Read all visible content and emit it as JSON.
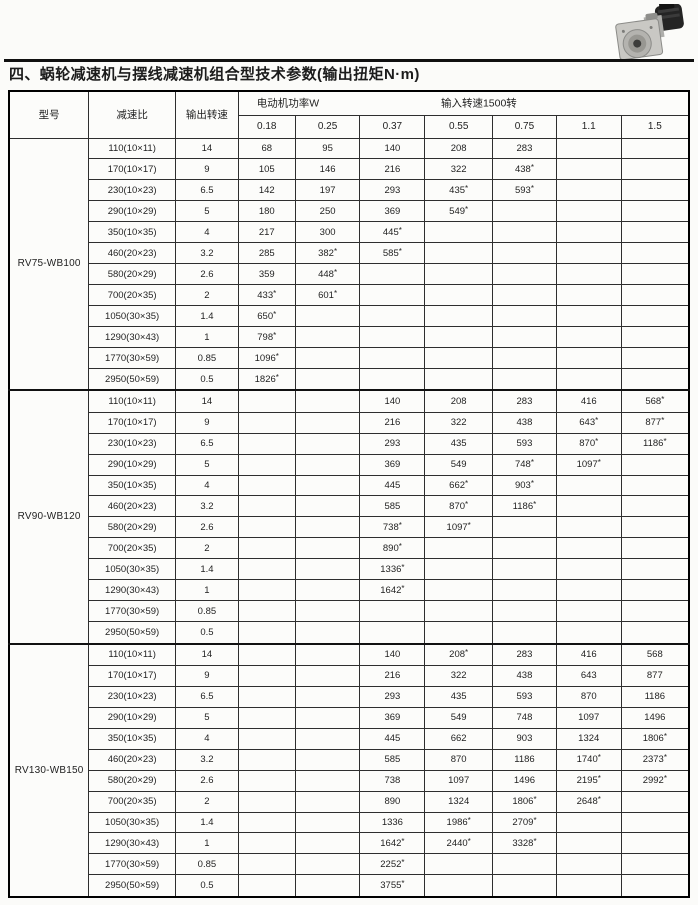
{
  "colors": {
    "text": "#1c1c1c",
    "table_border": "#000000",
    "page_bg": "#fbfbf9"
  },
  "page": {
    "title": "四、蜗轮减速机与摆线减速机组合型技术参数(输出扭矩N·m)",
    "photo_icon": "worm-gearbox-with-motor-photo"
  },
  "table": {
    "headers": {
      "model": "型号",
      "ratio": "减速比",
      "output_speed": "输出转速",
      "motor_power": "电动机功率W",
      "input_speed": "输入转速1500转",
      "power_columns": [
        "0.18",
        "0.25",
        "0.37",
        "0.55",
        "0.75",
        "1.1",
        "1.5"
      ]
    },
    "groups": [
      {
        "model": "RV75-WB100",
        "rows": [
          {
            "ratio": "110(10×11)",
            "speed": "14",
            "values": [
              "68",
              "95",
              "140",
              "208",
              "283",
              "",
              ""
            ]
          },
          {
            "ratio": "170(10×17)",
            "speed": "9",
            "values": [
              "105",
              "146",
              "216",
              "322",
              "438*",
              "",
              ""
            ]
          },
          {
            "ratio": "230(10×23)",
            "speed": "6.5",
            "values": [
              "142",
              "197",
              "293",
              "435*",
              "593*",
              "",
              ""
            ]
          },
          {
            "ratio": "290(10×29)",
            "speed": "5",
            "values": [
              "180",
              "250",
              "369",
              "549*",
              "",
              "",
              ""
            ]
          },
          {
            "ratio": "350(10×35)",
            "speed": "4",
            "values": [
              "217",
              "300",
              "445*",
              "",
              "",
              "",
              ""
            ]
          },
          {
            "ratio": "460(20×23)",
            "speed": "3.2",
            "values": [
              "285",
              "382*",
              "585*",
              "",
              "",
              "",
              ""
            ]
          },
          {
            "ratio": "580(20×29)",
            "speed": "2.6",
            "values": [
              "359",
              "448*",
              "",
              "",
              "",
              "",
              ""
            ]
          },
          {
            "ratio": "700(20×35)",
            "speed": "2",
            "values": [
              "433*",
              "601*",
              "",
              "",
              "",
              "",
              ""
            ]
          },
          {
            "ratio": "1050(30×35)",
            "speed": "1.4",
            "values": [
              "650*",
              "",
              "",
              "",
              "",
              "",
              ""
            ]
          },
          {
            "ratio": "1290(30×43)",
            "speed": "1",
            "values": [
              "798*",
              "",
              "",
              "",
              "",
              "",
              ""
            ]
          },
          {
            "ratio": "1770(30×59)",
            "speed": "0.85",
            "values": [
              "1096*",
              "",
              "",
              "",
              "",
              "",
              ""
            ]
          },
          {
            "ratio": "2950(50×59)",
            "speed": "0.5",
            "values": [
              "1826*",
              "",
              "",
              "",
              "",
              "",
              ""
            ]
          }
        ]
      },
      {
        "model": "RV90-WB120",
        "rows": [
          {
            "ratio": "110(10×11)",
            "speed": "14",
            "values": [
              "",
              "",
              "140",
              "208",
              "283",
              "416",
              "568*"
            ]
          },
          {
            "ratio": "170(10×17)",
            "speed": "9",
            "values": [
              "",
              "",
              "216",
              "322",
              "438",
              "643*",
              "877*"
            ]
          },
          {
            "ratio": "230(10×23)",
            "speed": "6.5",
            "values": [
              "",
              "",
              "293",
              "435",
              "593",
              "870*",
              "1186*"
            ]
          },
          {
            "ratio": "290(10×29)",
            "speed": "5",
            "values": [
              "",
              "",
              "369",
              "549",
              "748*",
              "1097*",
              ""
            ]
          },
          {
            "ratio": "350(10×35)",
            "speed": "4",
            "values": [
              "",
              "",
              "445",
              "662*",
              "903*",
              "",
              ""
            ]
          },
          {
            "ratio": "460(20×23)",
            "speed": "3.2",
            "values": [
              "",
              "",
              "585",
              "870*",
              "1186*",
              "",
              ""
            ]
          },
          {
            "ratio": "580(20×29)",
            "speed": "2.6",
            "values": [
              "",
              "",
              "738*",
              "1097*",
              "",
              "",
              ""
            ]
          },
          {
            "ratio": "700(20×35)",
            "speed": "2",
            "values": [
              "",
              "",
              "890*",
              "",
              "",
              "",
              ""
            ]
          },
          {
            "ratio": "1050(30×35)",
            "speed": "1.4",
            "values": [
              "",
              "",
              "1336*",
              "",
              "",
              "",
              ""
            ]
          },
          {
            "ratio": "1290(30×43)",
            "speed": "1",
            "values": [
              "",
              "",
              "1642*",
              "",
              "",
              "",
              ""
            ]
          },
          {
            "ratio": "1770(30×59)",
            "speed": "0.85",
            "values": [
              "",
              "",
              "",
              "",
              "",
              "",
              ""
            ]
          },
          {
            "ratio": "2950(50×59)",
            "speed": "0.5",
            "values": [
              "",
              "",
              "",
              "",
              "",
              "",
              ""
            ]
          }
        ]
      },
      {
        "model": "RV130-WB150",
        "rows": [
          {
            "ratio": "110(10×11)",
            "speed": "14",
            "values": [
              "",
              "",
              "140",
              "208*",
              "283",
              "416",
              "568"
            ]
          },
          {
            "ratio": "170(10×17)",
            "speed": "9",
            "values": [
              "",
              "",
              "216",
              "322",
              "438",
              "643",
              "877"
            ]
          },
          {
            "ratio": "230(10×23)",
            "speed": "6.5",
            "values": [
              "",
              "",
              "293",
              "435",
              "593",
              "870",
              "1186"
            ]
          },
          {
            "ratio": "290(10×29)",
            "speed": "5",
            "values": [
              "",
              "",
              "369",
              "549",
              "748",
              "1097",
              "1496"
            ]
          },
          {
            "ratio": "350(10×35)",
            "speed": "4",
            "values": [
              "",
              "",
              "445",
              "662",
              "903",
              "1324",
              "1806*"
            ]
          },
          {
            "ratio": "460(20×23)",
            "speed": "3.2",
            "values": [
              "",
              "",
              "585",
              "870",
              "1186",
              "1740*",
              "2373*"
            ]
          },
          {
            "ratio": "580(20×29)",
            "speed": "2.6",
            "values": [
              "",
              "",
              "738",
              "1097",
              "1496",
              "2195*",
              "2992*"
            ]
          },
          {
            "ratio": "700(20×35)",
            "speed": "2",
            "values": [
              "",
              "",
              "890",
              "1324",
              "1806*",
              "2648*",
              ""
            ]
          },
          {
            "ratio": "1050(30×35)",
            "speed": "1.4",
            "values": [
              "",
              "",
              "1336",
              "1986*",
              "2709*",
              "",
              ""
            ]
          },
          {
            "ratio": "1290(30×43)",
            "speed": "1",
            "values": [
              "",
              "",
              "1642*",
              "2440*",
              "3328*",
              "",
              ""
            ]
          },
          {
            "ratio": "1770(30×59)",
            "speed": "0.85",
            "values": [
              "",
              "",
              "2252*",
              "",
              "",
              "",
              ""
            ]
          },
          {
            "ratio": "2950(50×59)",
            "speed": "0.5",
            "values": [
              "",
              "",
              "3755*",
              "",
              "",
              "",
              ""
            ]
          }
        ]
      }
    ]
  }
}
